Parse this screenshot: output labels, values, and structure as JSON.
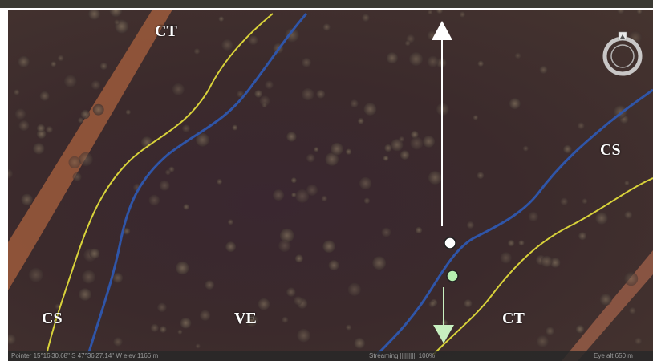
{
  "map": {
    "labels": {
      "ct_top": "CT",
      "cs_right": "CS",
      "cs_left": "CS",
      "ve": "VE",
      "ct_bottom": "CT"
    },
    "status_bar": {
      "coordinates": "Pointer 15°16'30.68\" S  47°36'27.14\" W  elev 1166 m",
      "streaming": "Streaming |||||||||| 100%",
      "eye_alt": "Eye alt  650 m"
    },
    "colors": {
      "boundary_yellow": "#d8d23a",
      "boundary_blue": "#2f55a8",
      "road": "#b8643f",
      "arrow_white": "#ffffff",
      "arrow_green": "#c8f0c0",
      "point_white": "#ffffff",
      "point_green": "#b6f0b0"
    },
    "icons": [
      "compass-icon",
      "up-arrow-icon",
      "down-arrow-icon"
    ]
  }
}
